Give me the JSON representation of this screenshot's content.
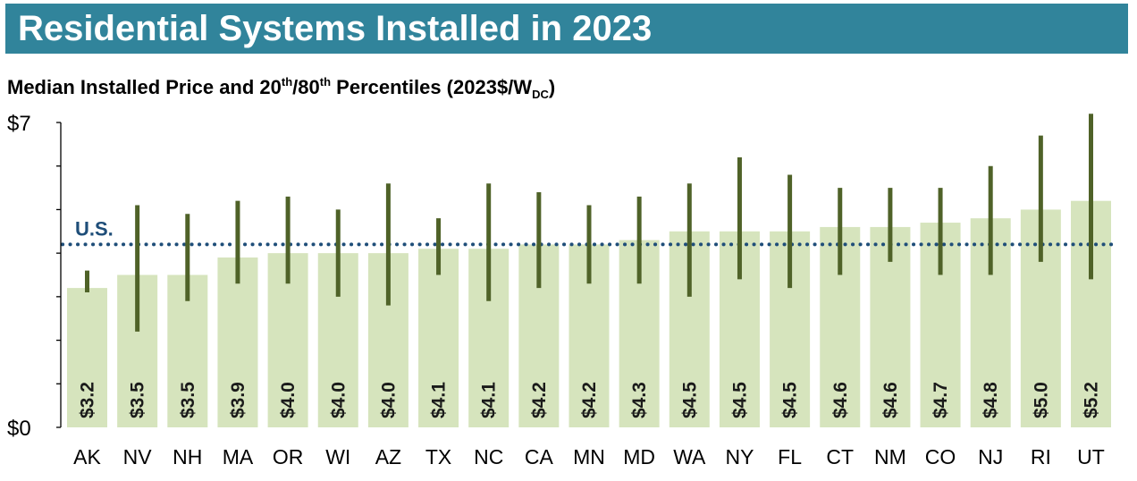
{
  "header": {
    "title": "Residential Systems Installed in 2023",
    "subtitle_parts": {
      "pre": "Median Installed Price and 20",
      "sup1": "th",
      "mid": "/80",
      "sup2": "th",
      "post": " Percentiles (2023$/W",
      "sub": "DC",
      "end": ")"
    }
  },
  "colors": {
    "banner": "#31849b",
    "bar": "#d6e4bd",
    "whisker": "#4f6228",
    "reference_line": "#1f4e79"
  },
  "chart_data": {
    "type": "bar",
    "categories": [
      "AK",
      "NV",
      "NH",
      "MA",
      "OR",
      "WI",
      "AZ",
      "TX",
      "NC",
      "CA",
      "MN",
      "MD",
      "WA",
      "NY",
      "FL",
      "CT",
      "NM",
      "CO",
      "NJ",
      "RI",
      "UT"
    ],
    "values": [
      3.2,
      3.5,
      3.5,
      3.9,
      4.0,
      4.0,
      4.0,
      4.1,
      4.1,
      4.2,
      4.2,
      4.3,
      4.5,
      4.5,
      4.5,
      4.6,
      4.6,
      4.7,
      4.8,
      5.0,
      5.2
    ],
    "value_labels": [
      "$3.2",
      "$3.5",
      "$3.5",
      "$3.9",
      "$4.0",
      "$4.0",
      "$4.0",
      "$4.1",
      "$4.1",
      "$4.2",
      "$4.2",
      "$4.3",
      "$4.5",
      "$4.5",
      "$4.5",
      "$4.6",
      "$4.6",
      "$4.7",
      "$4.8",
      "$5.0",
      "$5.2"
    ],
    "p20": [
      3.1,
      2.2,
      2.9,
      3.3,
      3.3,
      3.0,
      2.8,
      3.5,
      2.9,
      3.2,
      3.3,
      3.3,
      3.0,
      3.4,
      3.2,
      3.5,
      3.8,
      3.5,
      3.5,
      3.8,
      3.4
    ],
    "p80": [
      3.6,
      5.1,
      4.9,
      5.2,
      5.3,
      5.0,
      5.6,
      4.8,
      5.6,
      5.4,
      5.1,
      5.3,
      5.6,
      6.2,
      5.8,
      5.5,
      5.5,
      5.5,
      6.0,
      6.7,
      7.2
    ],
    "reference": {
      "label": "U.S.",
      "value": 4.2
    },
    "yticks": [
      0,
      1,
      2,
      3,
      4,
      5,
      6,
      7
    ],
    "ytick_labels": [
      "$0",
      "",
      "",
      "",
      "",
      "",
      "",
      "$7"
    ],
    "ylim": [
      0,
      7
    ],
    "xlabel": "",
    "ylabel": "",
    "grid": false,
    "legend": "none"
  }
}
